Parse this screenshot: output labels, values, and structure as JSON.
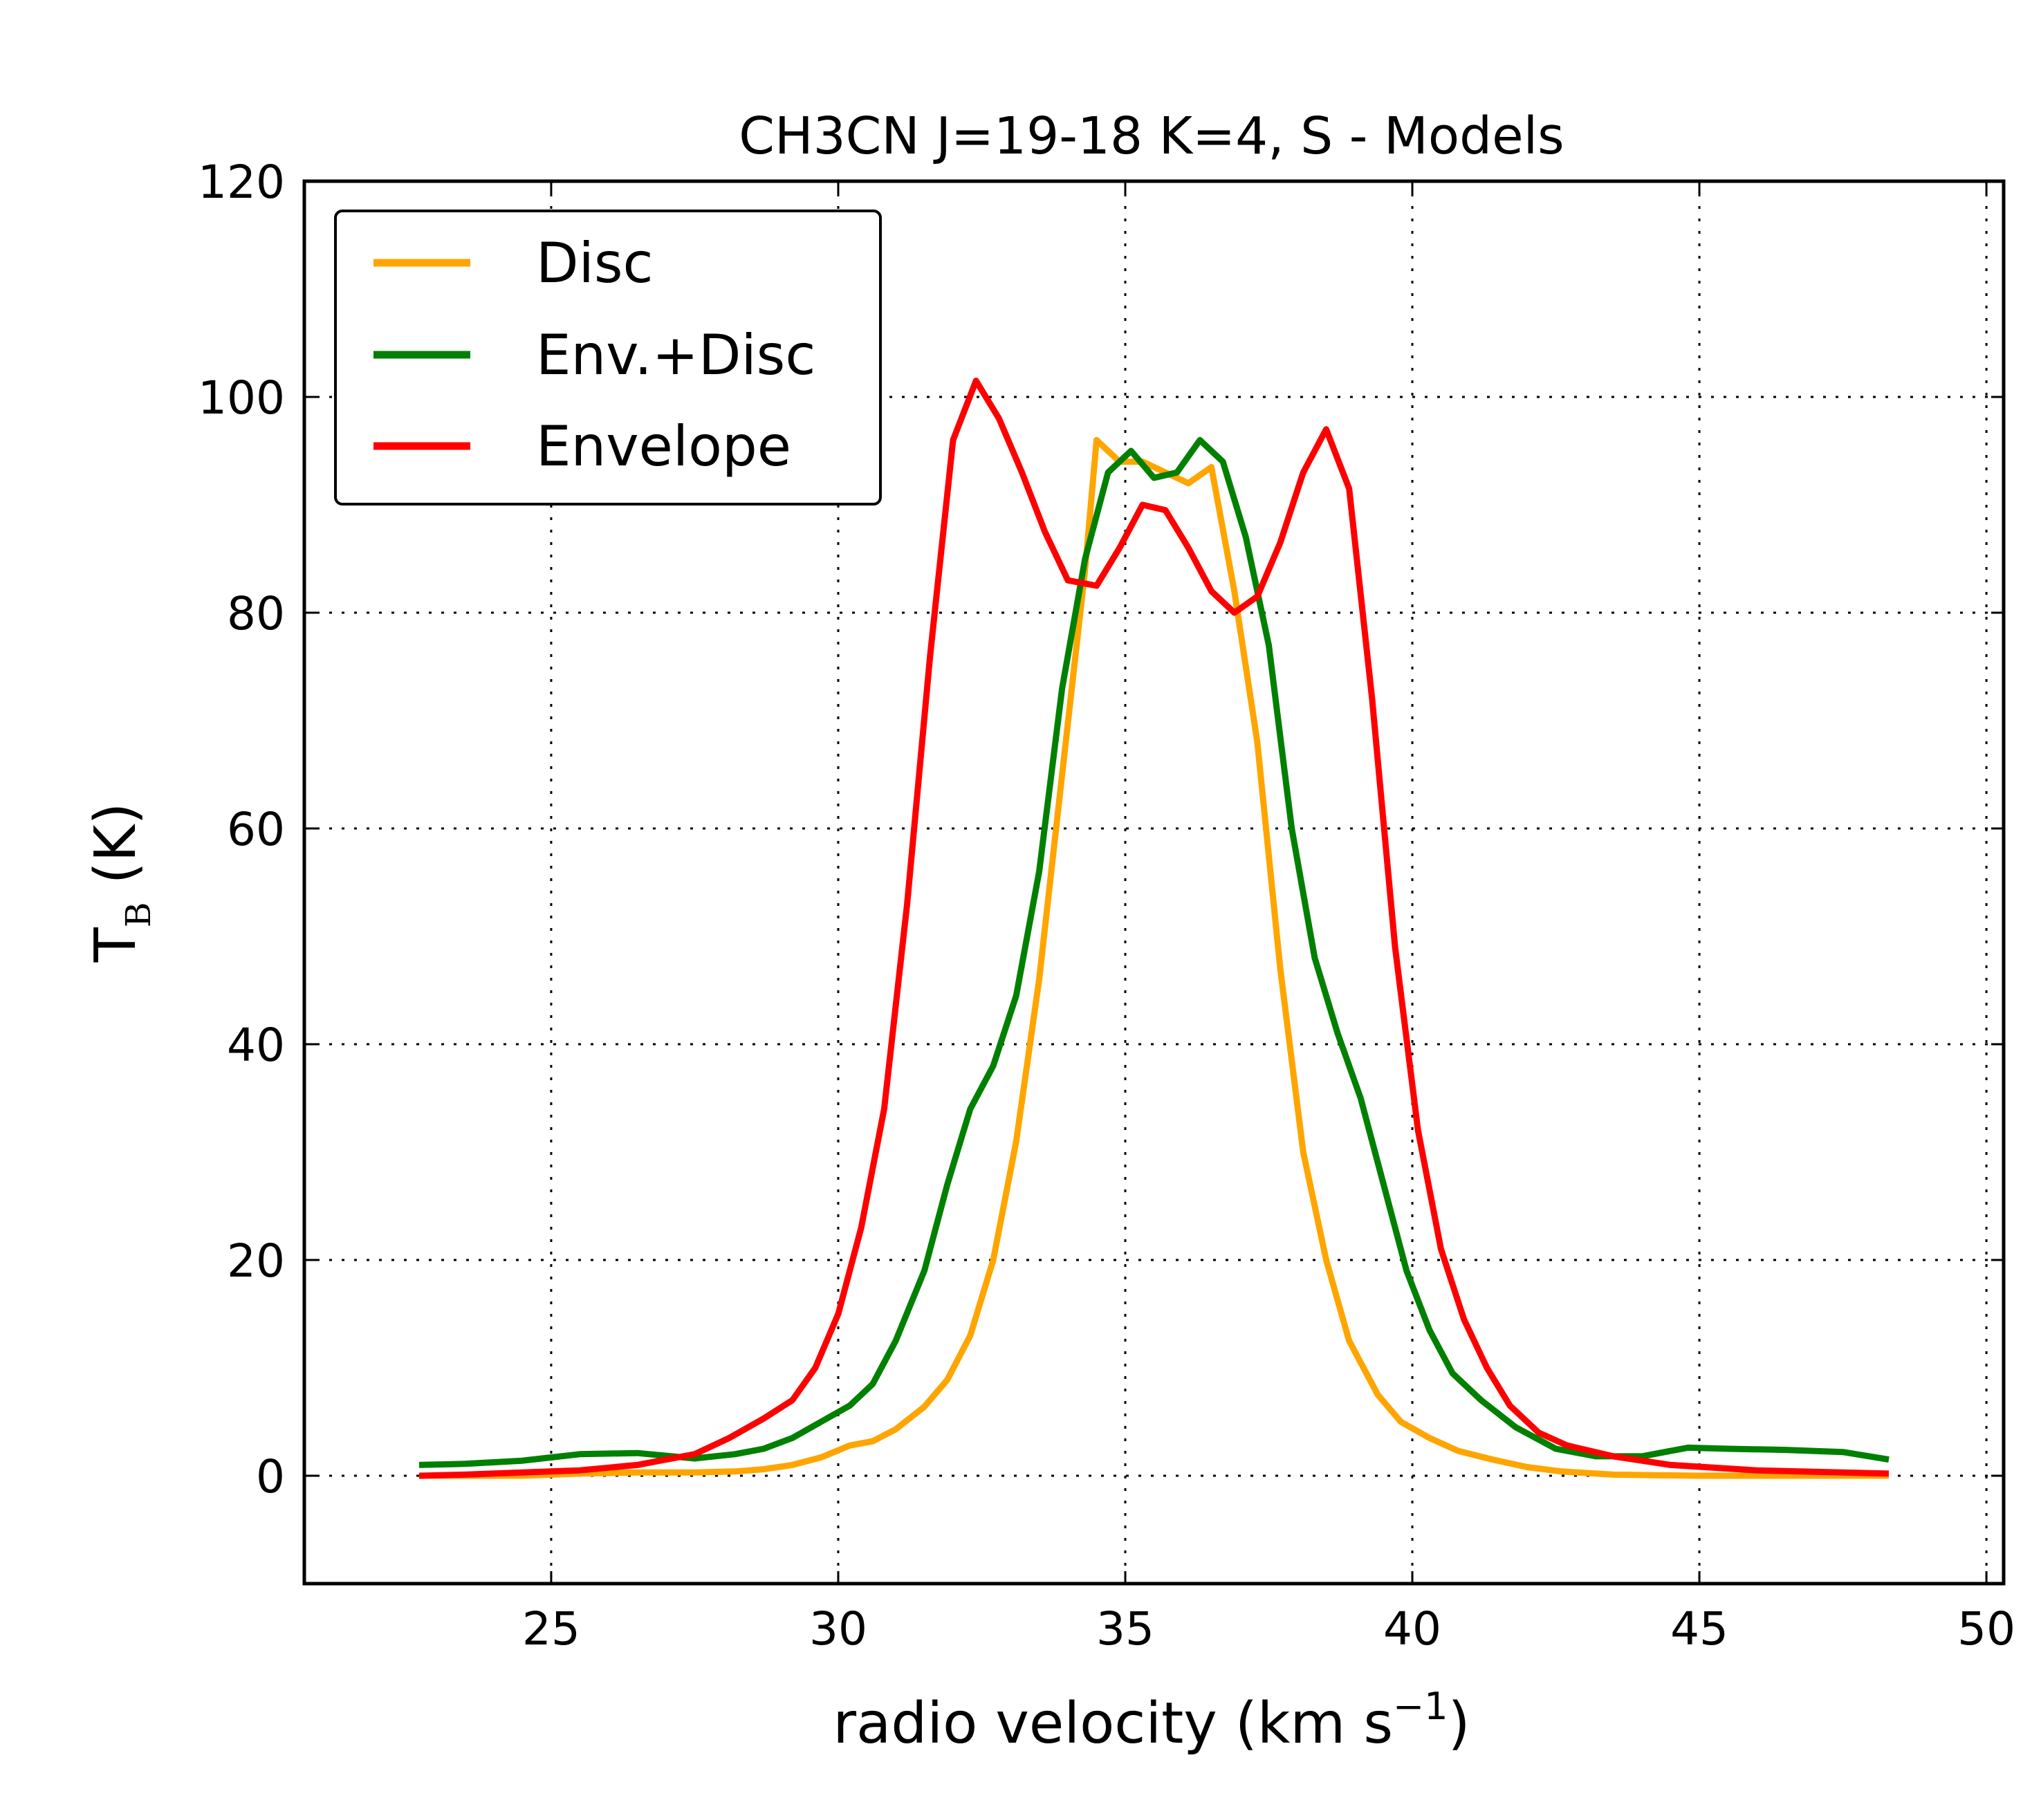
{
  "chart_data": {
    "type": "line",
    "title": "CH3CN J=19-18 K=4, S - Models",
    "xlabel_main": "radio velocity (km s",
    "xlabel_sup": "−1",
    "xlabel_close": ")",
    "ylabel_main": "T",
    "ylabel_sub": "B",
    "ylabel_unit": " (K)",
    "xlim": [
      20.7,
      50.3
    ],
    "ylim": [
      -10,
      120
    ],
    "xticks": [
      25,
      30,
      35,
      40,
      45,
      50
    ],
    "yticks": [
      0,
      20,
      40,
      60,
      80,
      100,
      120
    ],
    "grid": true,
    "legend_position": "top-left",
    "series": [
      {
        "name": "Disc",
        "color": "#FFA500",
        "x": [
          22.7,
          23.5,
          24.5,
          25.5,
          26.5,
          27.5,
          28.2,
          28.7,
          29.2,
          29.7,
          30.2,
          30.6,
          31.0,
          31.5,
          31.9,
          32.3,
          32.7,
          33.1,
          33.5,
          33.9,
          34.3,
          34.5,
          34.9,
          35.3,
          35.7,
          36.1,
          36.5,
          36.9,
          37.3,
          37.7,
          38.1,
          38.5,
          38.9,
          39.4,
          39.8,
          40.3,
          40.8,
          41.4,
          42.0,
          42.6,
          43.5,
          45.0,
          46.5,
          48.3
        ],
        "y": [
          0,
          0,
          0,
          0.2,
          0.3,
          0.3,
          0.4,
          0.6,
          1.0,
          1.7,
          2.8,
          3.2,
          4.3,
          6.4,
          8.9,
          13.0,
          20.0,
          31.0,
          46.0,
          65.0,
          84.0,
          96.0,
          94.0,
          94.0,
          93.0,
          92.0,
          93.5,
          82.0,
          68.0,
          47.0,
          30.0,
          20.0,
          12.5,
          7.5,
          5.0,
          3.5,
          2.3,
          1.5,
          0.8,
          0.4,
          0.1,
          0,
          0,
          0
        ]
      },
      {
        "name": "Env.+Disc",
        "color": "#008000",
        "x": [
          22.7,
          23.5,
          24.5,
          25.5,
          26.5,
          27.5,
          28.2,
          28.7,
          29.2,
          29.7,
          30.2,
          30.6,
          31.0,
          31.5,
          31.9,
          32.3,
          32.7,
          33.1,
          33.5,
          33.9,
          34.3,
          34.7,
          35.1,
          35.5,
          35.9,
          36.3,
          36.7,
          37.1,
          37.5,
          37.9,
          38.3,
          38.7,
          39.1,
          39.5,
          39.9,
          40.3,
          40.7,
          41.2,
          41.8,
          42.5,
          43.2,
          44.0,
          44.8,
          45.5,
          46.5,
          47.5,
          48.3
        ],
        "y": [
          1.0,
          1.1,
          1.4,
          2.0,
          2.1,
          1.6,
          2.0,
          2.5,
          3.5,
          5.0,
          6.5,
          8.5,
          12.5,
          19.0,
          27.0,
          34.0,
          38.0,
          44.5,
          56.0,
          73.0,
          85.0,
          93.0,
          95.0,
          92.5,
          93.0,
          96.0,
          94.0,
          87.0,
          77.0,
          60.0,
          48.0,
          41.0,
          35.0,
          27.0,
          19.0,
          13.5,
          9.5,
          7.0,
          4.5,
          2.5,
          1.8,
          1.8,
          2.6,
          2.5,
          2.4,
          2.2,
          1.5
        ]
      },
      {
        "name": "Envelope",
        "color": "#FF0000",
        "x": [
          22.7,
          23.5,
          24.5,
          25.5,
          26.5,
          27.0,
          27.5,
          28.1,
          28.7,
          29.2,
          29.6,
          30.0,
          30.4,
          30.8,
          31.2,
          31.6,
          32.0,
          32.4,
          32.8,
          33.2,
          33.6,
          34.0,
          34.5,
          34.9,
          35.3,
          35.7,
          36.1,
          36.5,
          36.9,
          37.3,
          37.7,
          38.1,
          38.5,
          38.9,
          39.3,
          39.7,
          40.1,
          40.5,
          40.9,
          41.3,
          41.7,
          42.2,
          42.7,
          43.5,
          44.5,
          46.0,
          48.3
        ],
        "y": [
          0,
          0.1,
          0.3,
          0.5,
          1.0,
          1.5,
          2.0,
          3.5,
          5.3,
          7.0,
          10.0,
          15.0,
          23.0,
          34.0,
          53.0,
          76.0,
          96.0,
          101.5,
          98.0,
          93.0,
          87.5,
          83.0,
          82.5,
          86.0,
          90.0,
          89.5,
          86.0,
          82.0,
          80.0,
          81.5,
          86.5,
          93.0,
          97.0,
          91.5,
          72.0,
          49.0,
          32.0,
          21.0,
          14.5,
          10.0,
          6.5,
          4.0,
          2.8,
          1.8,
          1.0,
          0.5,
          0.2
        ]
      }
    ]
  }
}
